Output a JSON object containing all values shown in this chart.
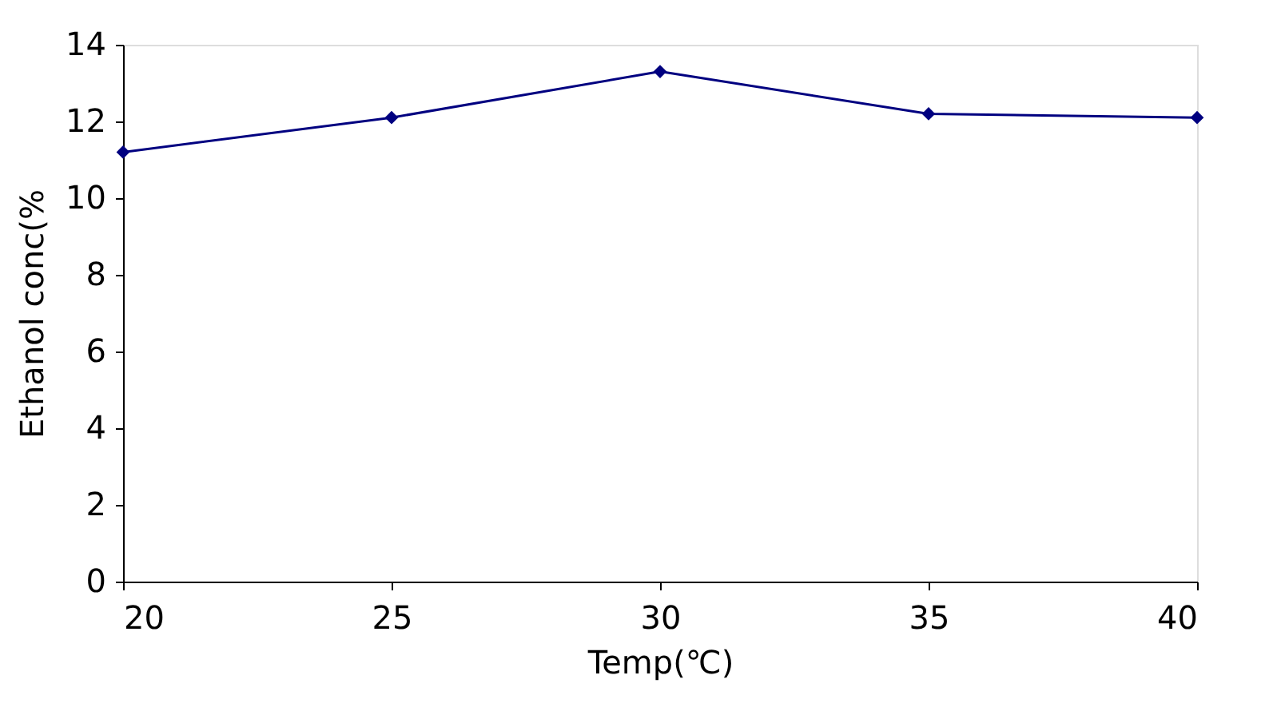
{
  "chart_data": {
    "type": "line",
    "xlabel": "Temp(℃)",
    "ylabel": "Ethanol conc(%",
    "x": [
      20,
      25,
      30,
      35,
      40
    ],
    "series": [
      {
        "color": "#000080",
        "values": [
          11.2,
          12.1,
          13.3,
          12.2,
          12.1
        ]
      }
    ],
    "xlim": [
      20,
      40
    ],
    "xticks": [
      20,
      25,
      30,
      35,
      40
    ],
    "ylim": [
      0,
      14
    ],
    "yticks": [
      0,
      2,
      4,
      6,
      8,
      10,
      12,
      14
    ],
    "grid": false,
    "legend": false,
    "marker": "diamond",
    "line_style": "solid"
  }
}
